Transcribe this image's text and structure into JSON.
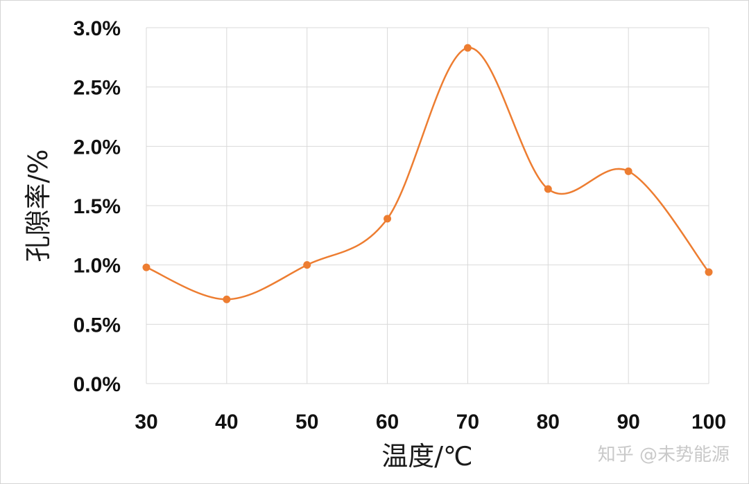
{
  "chart_data": {
    "type": "line",
    "smooth": true,
    "title": "",
    "xlabel": "温度/℃",
    "ylabel": "孔隙率/%",
    "x": [
      30,
      40,
      50,
      60,
      70,
      80,
      90,
      100
    ],
    "series": [
      {
        "values": [
          0.98,
          0.71,
          1.0,
          1.39,
          2.83,
          1.64,
          1.79,
          0.94
        ],
        "color": "#ED7D31"
      }
    ],
    "y_ticks": [
      "0.0%",
      "0.5%",
      "1.0%",
      "1.5%",
      "2.0%",
      "2.5%",
      "3.0%"
    ],
    "x_ticks": [
      "30",
      "40",
      "50",
      "60",
      "70",
      "80",
      "90",
      "100"
    ],
    "ylim": [
      0,
      3.0
    ],
    "y_unit": "%",
    "grid": true,
    "legend": "none"
  },
  "watermark": "知乎 @未势能源",
  "colors": {
    "line": "#ED7D31",
    "grid": "#d9d9d9"
  }
}
